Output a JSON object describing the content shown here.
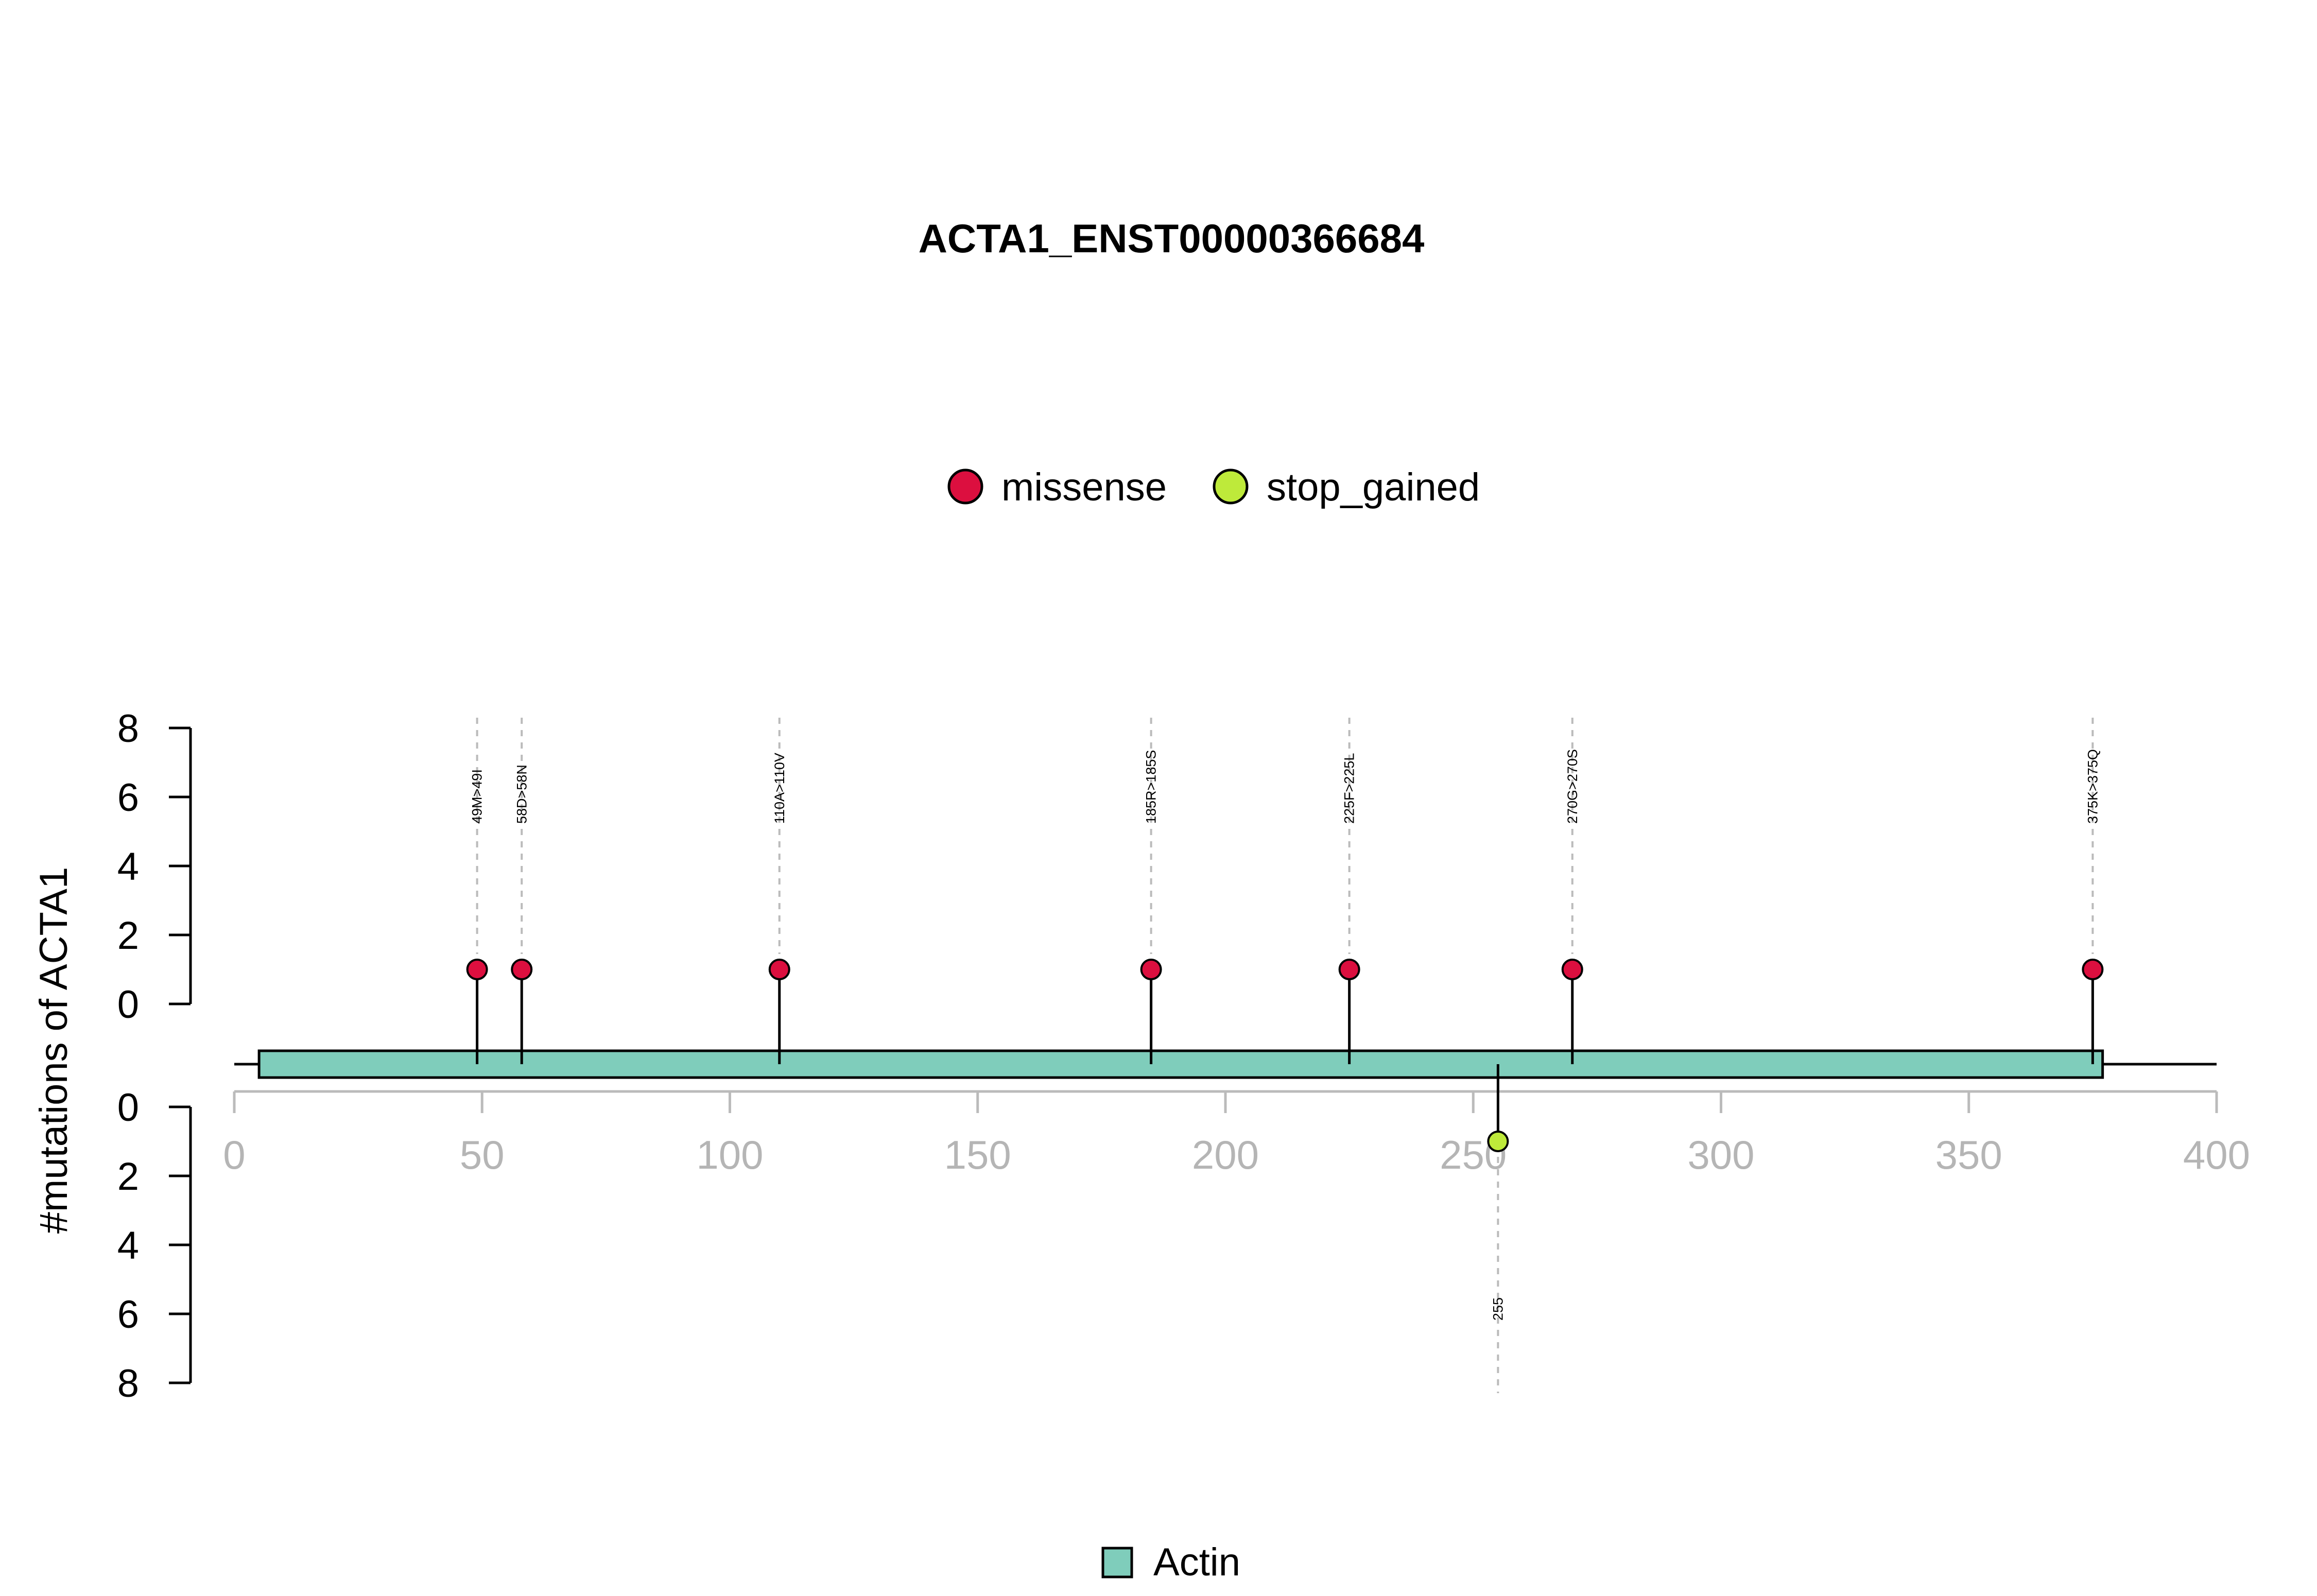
{
  "chart_data": {
    "type": "lollipop",
    "title": "ACTA1_ENST00000366684",
    "ylabel": "#mutations of ACTA1",
    "xlim": [
      0,
      400
    ],
    "x_ticks": [
      0,
      50,
      100,
      150,
      200,
      250,
      300,
      350,
      400
    ],
    "upper_y_ticks": [
      0,
      2,
      4,
      6,
      8
    ],
    "lower_y_ticks": [
      0,
      2,
      4,
      6,
      8
    ],
    "protein_length": 377,
    "legend": {
      "missense": {
        "label": "missense",
        "color": "#DC0F3F"
      },
      "stop_gained": {
        "label": "stop_gained",
        "color": "#BEEA3A"
      }
    },
    "domains": [
      {
        "name": "Actin",
        "start": 5,
        "end": 377,
        "color": "#7FCDBB"
      }
    ],
    "upper_mutations": [
      {
        "position": 49,
        "count": 1,
        "label": "49M>49I",
        "type": "missense"
      },
      {
        "position": 58,
        "count": 1,
        "label": "58D>58N",
        "type": "missense"
      },
      {
        "position": 110,
        "count": 1,
        "label": "110A>110V",
        "type": "missense"
      },
      {
        "position": 185,
        "count": 1,
        "label": "185R>185S",
        "type": "missense"
      },
      {
        "position": 225,
        "count": 1,
        "label": "225F>225L",
        "type": "missense"
      },
      {
        "position": 270,
        "count": 1,
        "label": "270G>270S",
        "type": "missense"
      },
      {
        "position": 375,
        "count": 1,
        "label": "375K>375Q",
        "type": "missense"
      }
    ],
    "lower_mutations": [
      {
        "position": 255,
        "count": 1,
        "label": "255",
        "type": "stop_gained"
      }
    ]
  }
}
